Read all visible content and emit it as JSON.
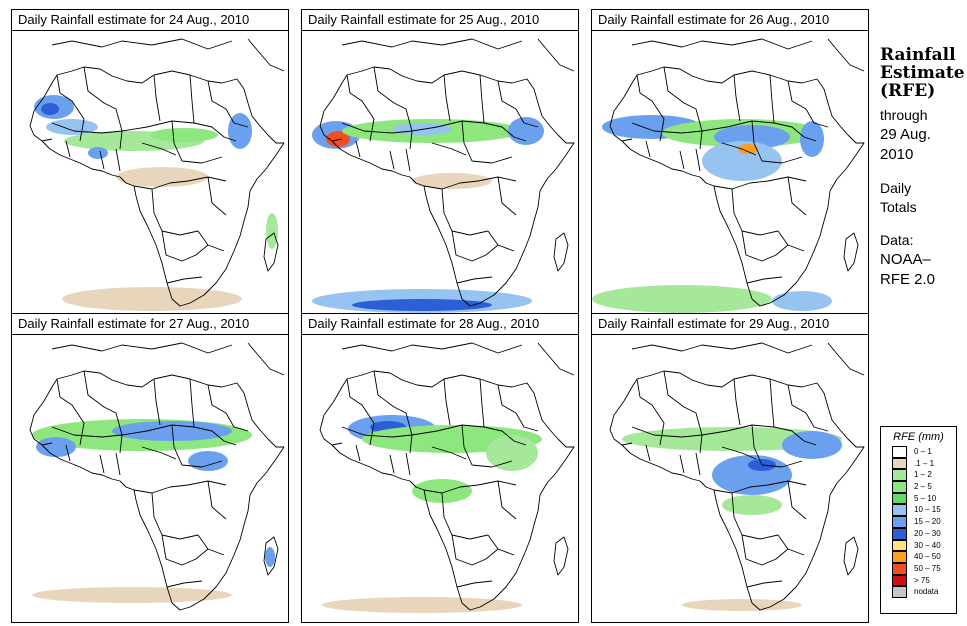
{
  "panels": [
    {
      "title": "Daily Rainfall estimate for  24 Aug., 2010"
    },
    {
      "title": "Daily Rainfall estimate for  25 Aug., 2010"
    },
    {
      "title": "Daily Rainfall estimate for  26 Aug., 2010"
    },
    {
      "title": "Daily Rainfall estimate for  27 Aug., 2010"
    },
    {
      "title": "Daily Rainfall estimate for  28 Aug., 2010"
    },
    {
      "title": "Daily Rainfall estimate for  29 Aug., 2010"
    }
  ],
  "info": {
    "heading_line1": "Rainfall",
    "heading_line2": "Estimate",
    "heading_line3": "(RFE)",
    "through": "through",
    "date_line1": "29 Aug.",
    "date_line2": "2010",
    "daily": "Daily",
    "totals": "Totals",
    "data_label": "Data:",
    "source_line1": "NOAA–",
    "source_line2": "RFE 2.0"
  },
  "legend": {
    "title": "RFE (mm)",
    "items": [
      {
        "label": "0 – 1",
        "color": "#ffffff"
      },
      {
        "label": ".1 – 1",
        "color": "#e8d6bc"
      },
      {
        "label": "1 – 2",
        "color": "#a6e89a"
      },
      {
        "label": "2 – 5",
        "color": "#8ee67e"
      },
      {
        "label": "5 – 10",
        "color": "#64d964"
      },
      {
        "label": "10 – 15",
        "color": "#96c3f0"
      },
      {
        "label": "15 – 20",
        "color": "#6aa0ee"
      },
      {
        "label": "20 – 30",
        "color": "#2c5fd6"
      },
      {
        "label": "30 – 40",
        "color": "#ffe27a"
      },
      {
        "label": "40 – 50",
        "color": "#ff9d1e"
      },
      {
        "label": "50 – 75",
        "color": "#f05020"
      },
      {
        "label": "> 75",
        "color": "#cc1010"
      },
      {
        "label": "nodata",
        "color": "#c6c6c6"
      }
    ]
  }
}
